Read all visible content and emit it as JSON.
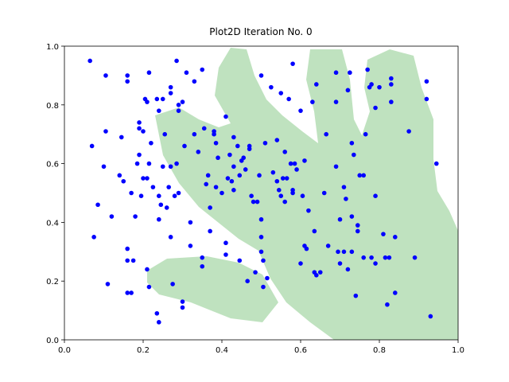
{
  "chart_data": {
    "type": "scatter",
    "title": "Plot2D Iteration No. 0",
    "color": "#0000ff",
    "xlim": [
      0,
      1
    ],
    "ylim": [
      0,
      1
    ],
    "xticks": [
      {
        "value": 0,
        "label": "0.0"
      },
      0.2,
      0.4,
      0.6,
      0.8,
      {
        "value": 1,
        "label": "1.0"
      }
    ],
    "yticks": [
      {
        "value": 0,
        "label": "0.0"
      },
      0.2,
      0.4,
      0.6,
      0.8,
      {
        "value": 1,
        "label": "1.0"
      }
    ],
    "x": [
      0.065,
      0.07,
      0.075,
      0.085,
      0.1,
      0.105,
      0.105,
      0.11,
      0.12,
      0.14,
      0.145,
      0.15,
      0.16,
      0.16,
      0.16,
      0.16,
      0.16,
      0.17,
      0.17,
      0.175,
      0.18,
      0.185,
      0.19,
      0.19,
      0.19,
      0.195,
      0.2,
      0.2,
      0.205,
      0.21,
      0.21,
      0.21,
      0.215,
      0.215,
      0.215,
      0.22,
      0.225,
      0.235,
      0.235,
      0.24,
      0.24,
      0.24,
      0.24,
      0.245,
      0.25,
      0.25,
      0.255,
      0.26,
      0.265,
      0.27,
      0.27,
      0.27,
      0.27,
      0.275,
      0.28,
      0.285,
      0.285,
      0.29,
      0.29,
      0.29,
      0.3,
      0.3,
      0.3,
      0.305,
      0.31,
      0.32,
      0.32,
      0.33,
      0.33,
      0.34,
      0.35,
      0.35,
      0.35,
      0.355,
      0.36,
      0.365,
      0.37,
      0.37,
      0.38,
      0.38,
      0.385,
      0.385,
      0.39,
      0.4,
      0.41,
      0.41,
      0.41,
      0.415,
      0.42,
      0.425,
      0.43,
      0.43,
      0.43,
      0.44,
      0.445,
      0.445,
      0.45,
      0.455,
      0.46,
      0.465,
      0.47,
      0.47,
      0.475,
      0.48,
      0.485,
      0.49,
      0.495,
      0.5,
      0.5,
      0.5,
      0.5,
      0.505,
      0.505,
      0.51,
      0.515,
      0.525,
      0.53,
      0.54,
      0.54,
      0.545,
      0.55,
      0.55,
      0.555,
      0.56,
      0.56,
      0.565,
      0.57,
      0.575,
      0.58,
      0.58,
      0.58,
      0.585,
      0.59,
      0.6,
      0.6,
      0.605,
      0.61,
      0.61,
      0.615,
      0.62,
      0.63,
      0.635,
      0.635,
      0.64,
      0.64,
      0.65,
      0.66,
      0.665,
      0.67,
      0.69,
      0.69,
      0.69,
      0.695,
      0.7,
      0.7,
      0.71,
      0.71,
      0.715,
      0.72,
      0.72,
      0.725,
      0.73,
      0.73,
      0.73,
      0.735,
      0.74,
      0.745,
      0.745,
      0.75,
      0.76,
      0.76,
      0.765,
      0.77,
      0.775,
      0.78,
      0.78,
      0.79,
      0.79,
      0.79,
      0.8,
      0.81,
      0.815,
      0.82,
      0.825,
      0.83,
      0.83,
      0.83,
      0.84,
      0.84,
      0.875,
      0.89,
      0.92,
      0.92,
      0.93,
      0.945
    ],
    "values": [
      0.95,
      0.66,
      0.35,
      0.46,
      0.59,
      0.9,
      0.71,
      0.19,
      0.42,
      0.56,
      0.69,
      0.54,
      0.9,
      0.88,
      0.27,
      0.31,
      0.16,
      0.16,
      0.5,
      0.27,
      0.42,
      0.6,
      0.72,
      0.74,
      0.63,
      0.49,
      0.71,
      0.55,
      0.82,
      0.24,
      0.81,
      0.55,
      0.91,
      0.18,
      0.6,
      0.67,
      0.52,
      0.09,
      0.82,
      0.78,
      0.06,
      0.49,
      0.41,
      0.46,
      0.59,
      0.82,
      0.7,
      0.45,
      0.52,
      0.59,
      0.86,
      0.84,
      0.35,
      0.19,
      0.49,
      0.95,
      0.6,
      0.5,
      0.78,
      0.8,
      0.81,
      0.11,
      0.13,
      0.66,
      0.91,
      0.32,
      0.4,
      0.88,
      0.7,
      0.64,
      0.25,
      0.28,
      0.92,
      0.72,
      0.53,
      0.56,
      0.45,
      0.37,
      0.71,
      0.7,
      0.67,
      0.52,
      0.62,
      0.5,
      0.33,
      0.29,
      0.76,
      0.55,
      0.63,
      0.54,
      0.69,
      0.59,
      0.51,
      0.66,
      0.56,
      0.27,
      0.61,
      0.62,
      0.58,
      0.2,
      0.65,
      0.66,
      0.49,
      0.47,
      0.23,
      0.47,
      0.56,
      0.9,
      0.41,
      0.35,
      0.3,
      0.27,
      0.18,
      0.67,
      0.21,
      0.86,
      0.57,
      0.68,
      0.54,
      0.51,
      0.84,
      0.49,
      0.55,
      0.64,
      0.47,
      0.55,
      0.82,
      0.6,
      0.94,
      0.51,
      0.5,
      0.6,
      0.58,
      0.26,
      0.78,
      0.49,
      0.61,
      0.32,
      0.31,
      0.44,
      0.81,
      0.23,
      0.37,
      0.22,
      0.87,
      0.23,
      0.5,
      0.7,
      0.32,
      0.91,
      0.59,
      0.81,
      0.3,
      0.41,
      0.26,
      0.52,
      0.3,
      0.48,
      0.24,
      0.85,
      0.91,
      0.3,
      0.42,
      0.67,
      0.63,
      0.15,
      0.39,
      0.37,
      0.56,
      0.56,
      0.28,
      0.7,
      0.92,
      0.86,
      0.28,
      0.87,
      0.26,
      0.49,
      0.79,
      0.86,
      0.36,
      0.28,
      0.12,
      0.28,
      0.87,
      0.89,
      0.81,
      0.35,
      0.16,
      0.71,
      0.28,
      0.88,
      0.82,
      0.08,
      0.6
    ]
  }
}
